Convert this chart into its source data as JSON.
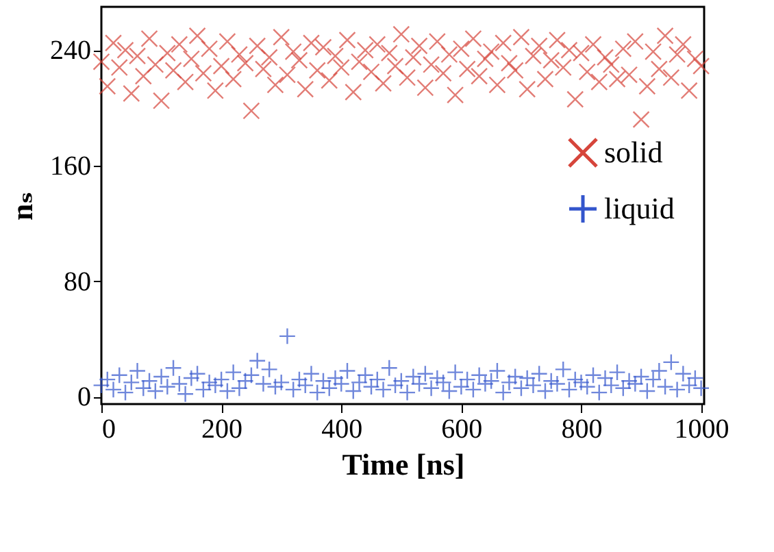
{
  "chart_data": {
    "type": "scatter",
    "xlabel": "Time [ns]",
    "ylabel": "nₛ",
    "xlim": [
      0,
      1005
    ],
    "ylim": [
      -5,
      270
    ],
    "xticks": [
      0,
      200,
      400,
      600,
      800,
      1000
    ],
    "yticks": [
      0,
      80,
      160,
      240
    ],
    "grid": false,
    "legend": "right",
    "x": [
      0,
      10,
      20,
      30,
      40,
      50,
      60,
      70,
      80,
      90,
      100,
      110,
      120,
      130,
      140,
      150,
      160,
      170,
      180,
      190,
      200,
      210,
      220,
      230,
      240,
      250,
      260,
      270,
      280,
      290,
      300,
      310,
      320,
      330,
      340,
      350,
      360,
      370,
      380,
      390,
      400,
      410,
      420,
      430,
      440,
      450,
      460,
      470,
      480,
      490,
      500,
      510,
      520,
      530,
      540,
      550,
      560,
      570,
      580,
      590,
      600,
      610,
      620,
      630,
      640,
      650,
      660,
      670,
      680,
      690,
      700,
      710,
      720,
      730,
      740,
      750,
      760,
      770,
      780,
      790,
      800,
      810,
      820,
      830,
      840,
      850,
      860,
      870,
      880,
      890,
      900,
      910,
      920,
      930,
      940,
      950,
      960,
      970,
      980,
      990,
      1000
    ],
    "series": [
      {
        "name": "solid",
        "color": "#d6453b",
        "marker": "x",
        "values": [
          232,
          215,
          245,
          228,
          240,
          210,
          236,
          222,
          248,
          230,
          205,
          238,
          226,
          244,
          218,
          234,
          250,
          224,
          241,
          212,
          229,
          246,
          220,
          237,
          231,
          198,
          243,
          227,
          235,
          216,
          249,
          223,
          239,
          233,
          213,
          245,
          226,
          242,
          219,
          236,
          228,
          247,
          211,
          232,
          240,
          225,
          244,
          217,
          238,
          229,
          251,
          221,
          235,
          243,
          214,
          230,
          246,
          224,
          237,
          209,
          241,
          227,
          248,
          222,
          234,
          239,
          216,
          245,
          231,
          226,
          249,
          213,
          236,
          243,
          220,
          233,
          247,
          228,
          240,
          206,
          238,
          225,
          244,
          218,
          235,
          230,
          220,
          241,
          223,
          246,
          192,
          215,
          239,
          227,
          250,
          221,
          237,
          244,
          212,
          234,
          229
        ]
      },
      {
        "name": "liquid",
        "color": "#3355cc",
        "marker": "cross",
        "values": [
          8,
          12,
          5,
          15,
          3,
          10,
          18,
          6,
          11,
          4,
          14,
          7,
          20,
          9,
          2,
          13,
          16,
          5,
          10,
          8,
          12,
          4,
          17,
          6,
          11,
          15,
          25,
          9,
          19,
          7,
          10,
          42,
          5,
          12,
          8,
          16,
          3,
          11,
          6,
          13,
          9,
          18,
          4,
          10,
          15,
          7,
          12,
          5,
          20,
          8,
          11,
          3,
          14,
          9,
          16,
          6,
          13,
          10,
          4,
          17,
          7,
          12,
          5,
          15,
          9,
          11,
          18,
          3,
          10,
          14,
          6,
          13,
          8,
          16,
          4,
          11,
          9,
          19,
          5,
          12,
          10,
          7,
          15,
          3,
          13,
          8,
          17,
          6,
          11,
          9,
          14,
          4,
          12,
          18,
          7,
          24,
          5,
          16,
          8,
          13,
          6
        ]
      }
    ]
  }
}
